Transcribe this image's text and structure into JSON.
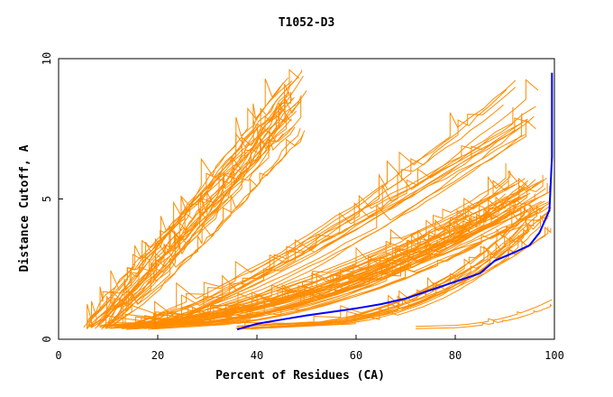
{
  "chart_data": {
    "type": "line",
    "title": "T1052-D3",
    "xlabel": "Percent of Residues (CA)",
    "ylabel": "Distance Cutoff, A",
    "xlim": [
      0,
      100
    ],
    "ylim": [
      0,
      10
    ],
    "xticks": [
      0,
      20,
      40,
      60,
      80,
      100
    ],
    "yticks": [
      0,
      5,
      10
    ],
    "grid": false,
    "legend": "none",
    "colors": {
      "models": "#ff8c00",
      "highlight": "#0000ff",
      "frame": "#000000"
    },
    "highlight_series": {
      "x": [
        36,
        40,
        45,
        50,
        55,
        60,
        65,
        70,
        75,
        80,
        85,
        88,
        92,
        95,
        97,
        99,
        99.5,
        99.5
      ],
      "y": [
        0.35,
        0.55,
        0.7,
        0.85,
        0.97,
        1.1,
        1.25,
        1.45,
        1.75,
        2.05,
        2.35,
        2.8,
        3.1,
        3.35,
        3.8,
        4.6,
        6.5,
        9.5
      ]
    },
    "model_groups": [
      {
        "count": 30,
        "x_start": 5,
        "x_end": 50,
        "y_start": 0.35,
        "y_end": 9.6,
        "exponent": 1.05,
        "x_spread": 6,
        "jitter": 0.35
      },
      {
        "count": 16,
        "x_start": 12,
        "x_end": 97,
        "y_start": 0.4,
        "y_end": 9.5,
        "exponent": 1.2,
        "x_spread": 10,
        "jitter": 0.3
      },
      {
        "count": 45,
        "x_start": 8,
        "x_end": 99.5,
        "y_start": 0.35,
        "y_end": 5.8,
        "exponent": 1.8,
        "x_spread": 12,
        "jitter": 0.2
      },
      {
        "count": 15,
        "x_start": 35,
        "x_end": 99.5,
        "y_start": 0.35,
        "y_end": 4.8,
        "exponent": 2.6,
        "x_spread": 8,
        "jitter": 0.12
      },
      {
        "count": 2,
        "x_start": 72,
        "x_end": 99.5,
        "y_start": 0.35,
        "y_end": 1.5,
        "exponent": 3.0,
        "x_spread": 0,
        "jitter": 0.05
      }
    ]
  }
}
